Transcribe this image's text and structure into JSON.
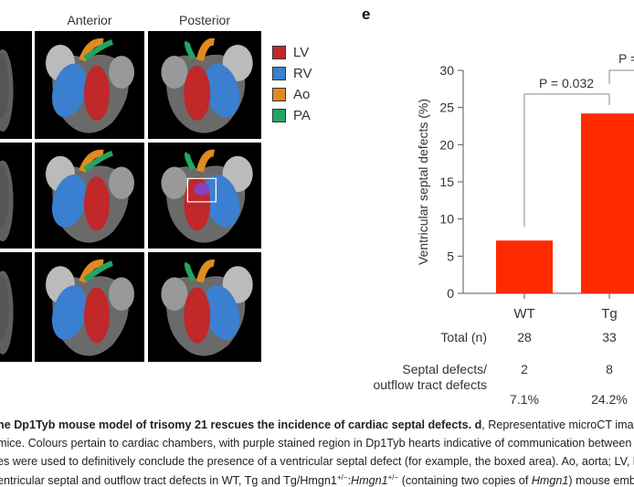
{
  "panel_d": {
    "column_headers": [
      "Anterior",
      "Posterior"
    ],
    "legend": [
      {
        "label": "LV",
        "color": "#c0282a"
      },
      {
        "label": "RV",
        "color": "#3a7fd0"
      },
      {
        "label": "Ao",
        "color": "#e08a20"
      },
      {
        "label": "PA",
        "color": "#22a463"
      }
    ]
  },
  "panel_e": {
    "label": "e",
    "table": {
      "row_labels": [
        "Total (n)",
        "Septal defects/",
        "outflow tract defects"
      ],
      "columns": [
        {
          "group": "WT",
          "total": "28",
          "defects": "2",
          "percent": "7.1%"
        },
        {
          "group": "Tg",
          "total": "33",
          "defects": "8",
          "percent": "24.2%"
        }
      ]
    }
  },
  "chart_data": {
    "type": "bar",
    "categories": [
      "WT",
      "Tg"
    ],
    "values": [
      7.1,
      24.2
    ],
    "ylabel": "Ventricular septal defects (%)",
    "ylim": [
      0,
      30
    ],
    "yticks": [
      0,
      5,
      10,
      15,
      20,
      25,
      30
    ],
    "bar_color": "#ff2a00",
    "annotations": [
      {
        "text": "P = 0.032",
        "between": [
          "WT",
          "Tg"
        ]
      },
      {
        "text": "P =",
        "between": [
          "Tg",
          "(cut off)"
        ]
      }
    ],
    "grid": false
  },
  "caption": {
    "line1_bold": "he Dp1Tyb mouse model of trisomy 21 rescues the incidence of cardiac septal defects.",
    "line1_bold_d": " d",
    "line1_rest": ", Representative microCT imaging r",
    "line2": "mice. Colours pertain to cardiac chambers, with purple stained region in Dp1Tyb hearts indicative of communication between",
    "line3": "es were used to definitively conclude the presence of a ventricular septal defect (for example, the boxed area). Ao, aorta; LV, l",
    "line4_a": "entricular septal and outflow tract defects in WT, Tg and Tg/Hmgn1",
    "line4_sup1": "+/−",
    "line4_b": ":",
    "line4_italic": "Hmgn1",
    "line4_sup2": "+/−",
    "line4_c": " (containing two copies of ",
    "line4_italic2": "Hmgn1",
    "line4_d": ") mouse embr"
  }
}
